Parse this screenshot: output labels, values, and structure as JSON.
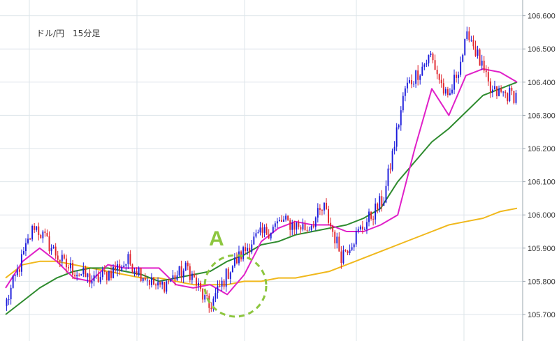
{
  "chart_data": {
    "type": "candlestick",
    "title": "ドル/円　15分足",
    "annotation": {
      "label": "A"
    },
    "y_ticks": [
      "106.600",
      "106.500",
      "106.400",
      "106.300",
      "106.200",
      "106.100",
      "106.000",
      "105.900",
      "105.800",
      "105.700"
    ],
    "ylim": [
      105.69,
      106.62
    ],
    "grid": true,
    "colors": {
      "up": "#1a1adb",
      "down": "#e0222a",
      "ma_short": "#e020c8",
      "ma_mid": "#2e8b2e",
      "ma_long": "#f0b81c",
      "annotation": "#8dc63f",
      "grid": "#dde4ea"
    },
    "segments": [
      {
        "n": 14,
        "start": 105.72,
        "end": 105.97
      },
      {
        "n": 14,
        "start": 105.97,
        "end": 105.85
      },
      {
        "n": 14,
        "start": 105.85,
        "end": 105.8
      },
      {
        "n": 16,
        "start": 105.8,
        "end": 105.86
      },
      {
        "n": 14,
        "start": 105.86,
        "end": 105.78
      },
      {
        "n": 14,
        "start": 105.78,
        "end": 105.84
      },
      {
        "n": 10,
        "start": 105.84,
        "end": 105.72
      },
      {
        "n": 10,
        "start": 105.72,
        "end": 105.84
      },
      {
        "n": 10,
        "start": 105.84,
        "end": 105.92
      },
      {
        "n": 14,
        "start": 105.92,
        "end": 105.98
      },
      {
        "n": 12,
        "start": 105.98,
        "end": 105.96
      },
      {
        "n": 8,
        "start": 105.96,
        "end": 106.02
      },
      {
        "n": 8,
        "start": 106.02,
        "end": 105.88
      },
      {
        "n": 12,
        "start": 105.88,
        "end": 105.98
      },
      {
        "n": 8,
        "start": 105.98,
        "end": 106.05
      },
      {
        "n": 10,
        "start": 106.05,
        "end": 106.38
      },
      {
        "n": 12,
        "start": 106.38,
        "end": 106.48
      },
      {
        "n": 8,
        "start": 106.48,
        "end": 106.34
      },
      {
        "n": 10,
        "start": 106.34,
        "end": 106.55
      },
      {
        "n": 10,
        "start": 106.55,
        "end": 106.37
      },
      {
        "n": 12,
        "start": 106.37,
        "end": 106.36
      }
    ],
    "ma_short_points": [
      105.78,
      105.86,
      105.9,
      105.86,
      105.81,
      105.8,
      105.85,
      105.84,
      105.84,
      105.84,
      105.79,
      105.78,
      105.79,
      105.76,
      105.82,
      105.92,
      105.96,
      105.98,
      105.97,
      105.97,
      105.95,
      105.95,
      105.97,
      106.0,
      106.2,
      106.38,
      106.3,
      106.42,
      106.44,
      106.43,
      106.4
    ],
    "ma_mid_points": [
      105.7,
      105.74,
      105.78,
      105.81,
      105.83,
      105.84,
      105.84,
      105.83,
      105.82,
      105.8,
      105.81,
      105.82,
      105.83,
      105.86,
      105.88,
      105.91,
      105.92,
      105.94,
      105.95,
      105.96,
      105.97,
      105.99,
      106.02,
      106.1,
      106.16,
      106.22,
      106.26,
      106.31,
      106.36,
      106.38,
      106.4
    ],
    "ma_long_points": [
      105.81,
      105.85,
      105.86,
      105.86,
      105.85,
      105.84,
      105.83,
      105.82,
      105.81,
      105.81,
      105.8,
      105.79,
      105.79,
      105.79,
      105.8,
      105.8,
      105.81,
      105.81,
      105.82,
      105.83,
      105.85,
      105.87,
      105.89,
      105.91,
      105.93,
      105.95,
      105.97,
      105.98,
      105.99,
      106.01,
      106.02
    ]
  }
}
